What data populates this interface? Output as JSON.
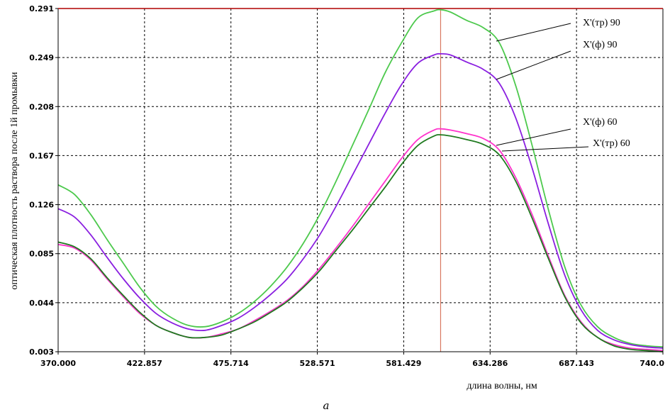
{
  "chart_data": {
    "type": "line",
    "xlabel": "длина волны, нм",
    "ylabel": "оптическая плотность раствора после 1й промывки",
    "caption": "а",
    "xlim": [
      370,
      740
    ],
    "ylim": [
      0.003,
      0.291
    ],
    "x_ticks": [
      "370.000",
      "422.857",
      "475.714",
      "528.571",
      "581.429",
      "634.286",
      "687.143",
      "740.0"
    ],
    "y_ticks": [
      "0.003",
      "0.044",
      "0.085",
      "0.126",
      "0.167",
      "0.208",
      "0.249",
      "0.291"
    ],
    "grid": true,
    "marker_line_x": 604,
    "x": [
      370,
      380,
      390,
      400,
      410,
      420,
      430,
      440,
      450,
      460,
      470,
      480,
      490,
      500,
      510,
      520,
      530,
      540,
      550,
      560,
      570,
      580,
      590,
      600,
      604,
      610,
      620,
      630,
      640,
      650,
      660,
      670,
      680,
      690,
      700,
      710,
      720,
      730,
      740
    ],
    "series": [
      {
        "name": "X'(тр) 90",
        "color": "#4dc94d",
        "values": [
          0.143,
          0.135,
          0.118,
          0.097,
          0.077,
          0.057,
          0.041,
          0.031,
          0.025,
          0.024,
          0.028,
          0.035,
          0.045,
          0.058,
          0.074,
          0.094,
          0.118,
          0.146,
          0.176,
          0.206,
          0.237,
          0.262,
          0.283,
          0.289,
          0.29,
          0.288,
          0.281,
          0.275,
          0.262,
          0.226,
          0.176,
          0.122,
          0.074,
          0.042,
          0.024,
          0.015,
          0.01,
          0.008,
          0.007
        ]
      },
      {
        "name": "X'(ф) 90",
        "color": "#8a1fe0",
        "values": [
          0.123,
          0.116,
          0.101,
          0.082,
          0.064,
          0.048,
          0.035,
          0.027,
          0.022,
          0.021,
          0.025,
          0.031,
          0.04,
          0.051,
          0.064,
          0.081,
          0.101,
          0.125,
          0.151,
          0.177,
          0.203,
          0.227,
          0.245,
          0.252,
          0.253,
          0.252,
          0.246,
          0.24,
          0.228,
          0.199,
          0.157,
          0.11,
          0.067,
          0.038,
          0.021,
          0.013,
          0.009,
          0.007,
          0.006
        ]
      },
      {
        "name": "X'(ф) 60",
        "color": "#ff33cc",
        "values": [
          0.093,
          0.09,
          0.08,
          0.064,
          0.049,
          0.035,
          0.025,
          0.019,
          0.015,
          0.015,
          0.018,
          0.022,
          0.029,
          0.037,
          0.046,
          0.058,
          0.073,
          0.09,
          0.108,
          0.127,
          0.146,
          0.165,
          0.181,
          0.189,
          0.19,
          0.189,
          0.186,
          0.182,
          0.172,
          0.149,
          0.118,
          0.083,
          0.05,
          0.028,
          0.015,
          0.009,
          0.006,
          0.005,
          0.004
        ]
      },
      {
        "name": "X'(тр) 60",
        "color": "#1f7a1f",
        "values": [
          0.095,
          0.091,
          0.081,
          0.065,
          0.05,
          0.036,
          0.025,
          0.019,
          0.015,
          0.015,
          0.017,
          0.022,
          0.028,
          0.036,
          0.045,
          0.057,
          0.071,
          0.088,
          0.105,
          0.123,
          0.141,
          0.16,
          0.176,
          0.184,
          0.185,
          0.184,
          0.181,
          0.177,
          0.168,
          0.146,
          0.115,
          0.081,
          0.049,
          0.027,
          0.015,
          0.008,
          0.005,
          0.004,
          0.003
        ]
      }
    ],
    "legend": [
      {
        "label": "X'(тр) 90"
      },
      {
        "label": "X'(ф) 90"
      },
      {
        "label": "X'(ф) 60"
      },
      {
        "label": "X'(тр) 60"
      }
    ]
  }
}
